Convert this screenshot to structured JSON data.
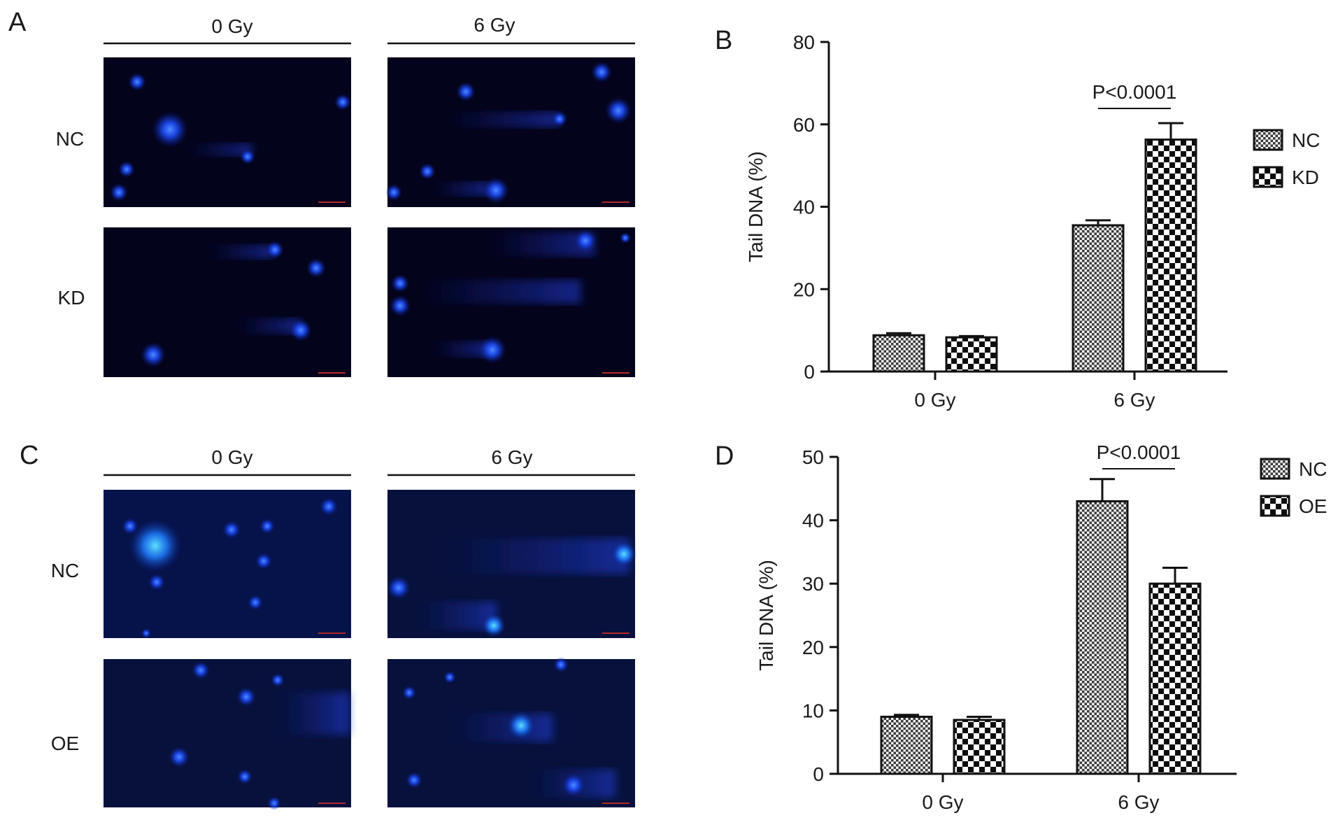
{
  "panels": {
    "A": {
      "label": "A",
      "columns": [
        "0 Gy",
        "6 Gy"
      ],
      "rows": [
        "NC",
        "KD"
      ]
    },
    "C": {
      "label": "C",
      "columns": [
        "0 Gy",
        "6 Gy"
      ],
      "rows": [
        "NC",
        "OE"
      ]
    }
  },
  "chart_data": [
    {
      "panel": "B",
      "type": "bar",
      "ylabel": "Tail DNA (%)",
      "xlabel": "",
      "categories": [
        "0 Gy",
        "6 Gy"
      ],
      "ylim": [
        0,
        80
      ],
      "yticks": [
        0,
        20,
        40,
        60,
        80
      ],
      "legend_position": "right",
      "series": [
        {
          "name": "NC",
          "values": [
            8.8,
            35.5
          ],
          "errors": [
            0.5,
            1.2
          ],
          "pattern": "fine-check"
        },
        {
          "name": "KD",
          "values": [
            8.3,
            56.3
          ],
          "errors": [
            0.3,
            4.0
          ],
          "pattern": "coarse-check"
        }
      ],
      "annotation": {
        "text": "P<0.0001",
        "category": "6 Gy"
      }
    },
    {
      "panel": "D",
      "type": "bar",
      "ylabel": "Tail DNA (%)",
      "xlabel": "",
      "categories": [
        "0 Gy",
        "6 Gy"
      ],
      "ylim": [
        0,
        50
      ],
      "yticks": [
        0,
        10,
        20,
        30,
        40,
        50
      ],
      "legend_position": "top-right",
      "series": [
        {
          "name": "NC",
          "values": [
            9.0,
            43.0
          ],
          "errors": [
            0.3,
            3.5
          ],
          "pattern": "fine-check"
        },
        {
          "name": "OE",
          "values": [
            8.5,
            30.0
          ],
          "errors": [
            0.5,
            2.5
          ],
          "pattern": "coarse-check"
        }
      ],
      "annotation": {
        "text": "P<0.0001",
        "category": "6 Gy"
      }
    }
  ]
}
